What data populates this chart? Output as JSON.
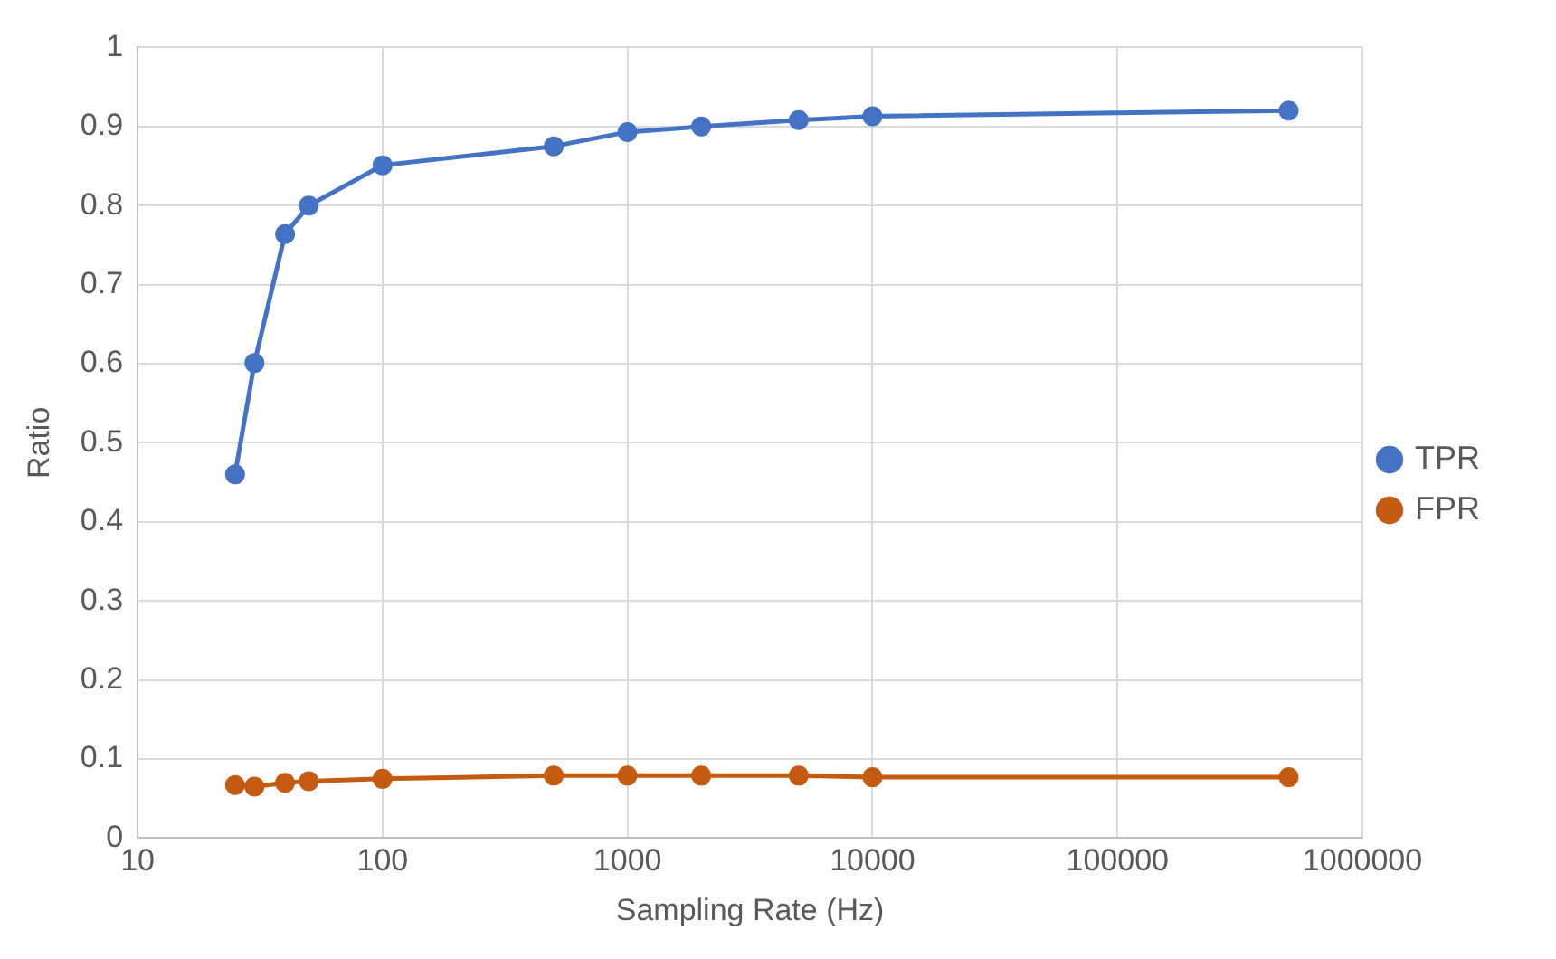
{
  "chart_data": {
    "type": "line",
    "xlabel": "Sampling Rate (Hz)",
    "ylabel": "Ratio",
    "x": [
      25,
      30,
      40,
      50,
      100,
      500,
      1000,
      2000,
      5000,
      10000,
      500000
    ],
    "series": [
      {
        "name": "TPR",
        "color": "#4472c4",
        "values": [
          0.46,
          0.601,
          0.764,
          0.8,
          0.851,
          0.875,
          0.893,
          0.9,
          0.908,
          0.913,
          0.92
        ]
      },
      {
        "name": "FPR",
        "color": "#c55a11",
        "values": [
          0.067,
          0.065,
          0.07,
          0.072,
          0.075,
          0.079,
          0.079,
          0.079,
          0.079,
          0.077,
          0.077
        ]
      }
    ],
    "log": "x",
    "xlim": [
      10,
      1000000
    ],
    "xticks": [
      10,
      100,
      1000,
      10000,
      100000,
      1000000
    ],
    "ylim": [
      0,
      1
    ],
    "yticks": [
      0,
      0.1,
      0.2,
      0.3,
      0.4,
      0.5,
      0.6,
      0.7,
      0.8,
      0.9,
      1
    ],
    "grid": true,
    "legend": "right",
    "marker": "circle",
    "line_style": "solid"
  }
}
